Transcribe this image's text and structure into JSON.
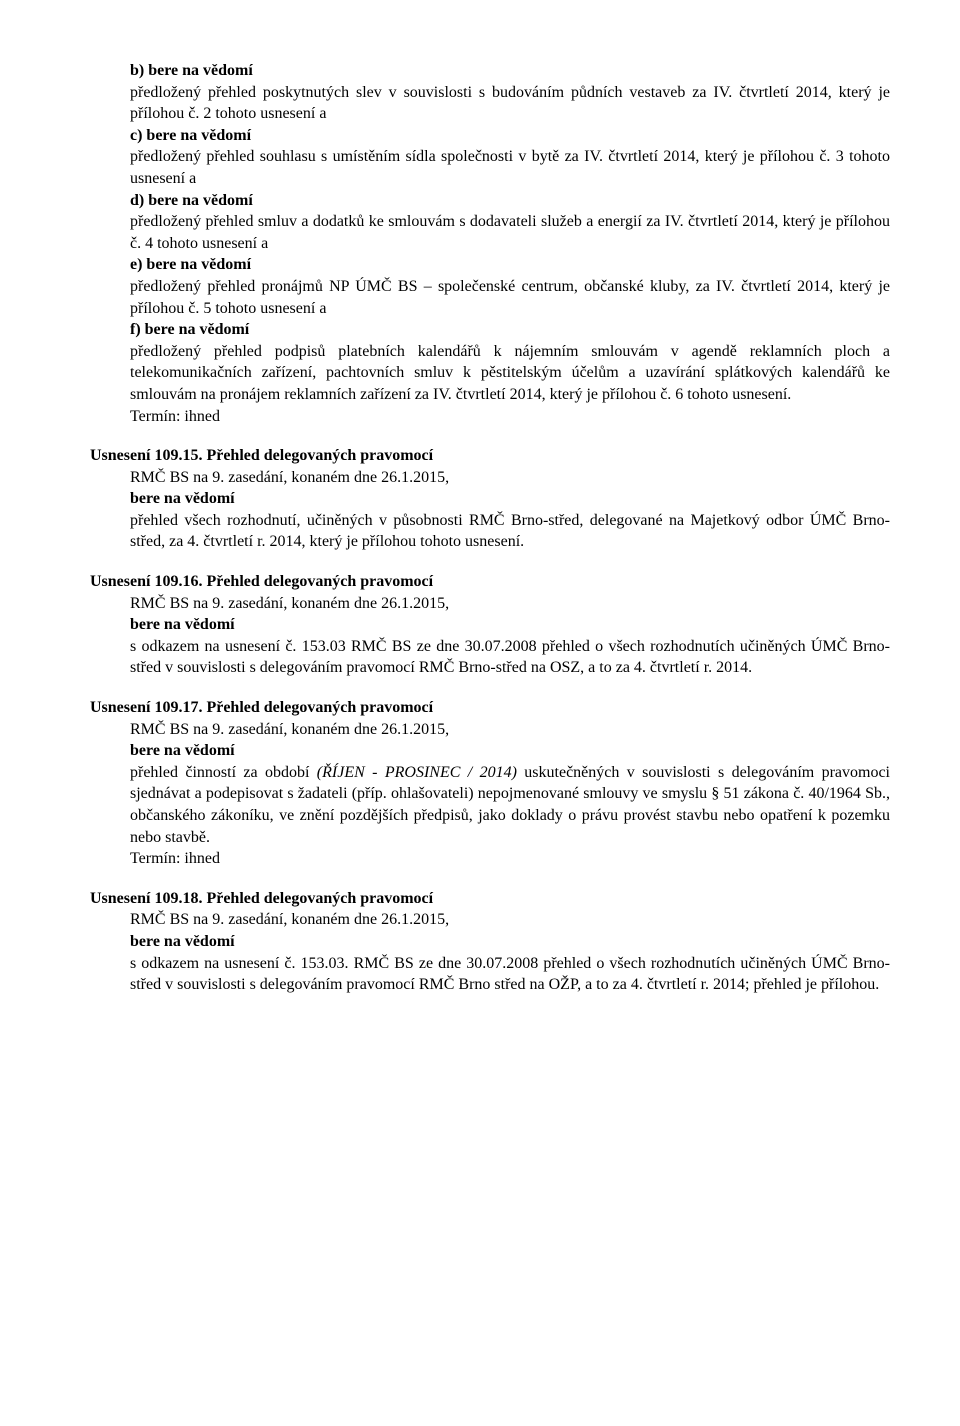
{
  "intro": {
    "b_head": "b) bere na vědomí",
    "b_body": "předložený přehled poskytnutých slev v souvislosti s budováním půdních vestaveb za IV. čtvrtletí 2014, který je přílohou č. 2 tohoto usnesení a",
    "c_head": "c) bere na vědomí",
    "c_body": "předložený přehled souhlasu s umístěním sídla společnosti v bytě za IV. čtvrtletí 2014, který je přílohou č. 3 tohoto usnesení a",
    "d_head": "d) bere na vědomí",
    "d_body": "předložený přehled smluv a dodatků ke smlouvám s dodavateli služeb a energií za IV. čtvrtletí 2014, který je přílohou č. 4 tohoto usnesení a",
    "e_head": "e) bere na vědomí",
    "e_body": "předložený přehled pronájmů NP ÚMČ BS – společenské centrum, občanské kluby, za IV. čtvrtletí 2014, který je přílohou č. 5 tohoto usnesení a",
    "f_head": "f) bere na vědomí",
    "f_body": "předložený přehled podpisů platebních kalendářů k nájemním smlouvám v agendě reklamních ploch a telekomunikačních zařízení, pachtovních smluv k pěstitelským účelům a uzavírání splátkových kalendářů ke smlouvám na pronájem reklamních zařízení za IV. čtvrtletí 2014, který je přílohou č. 6 tohoto usnesení.",
    "termin": "Termín: ihned"
  },
  "u15": {
    "heading_bold": "Usnesení 109.15. Přehled delegovaných pravomocí",
    "line1": "RMČ BS na 9. zasedání, konaném dne 26.1.2015,",
    "sub": "bere na vědomí",
    "body": "přehled všech rozhodnutí, učiněných v působnosti RMČ Brno-střed, delegované na Majetkový odbor ÚMČ Brno-střed, za 4. čtvrtletí r. 2014, který je přílohou tohoto usnesení."
  },
  "u16": {
    "heading_bold": "Usnesení 109.16. Přehled delegovaných pravomocí",
    "line1": "RMČ BS na 9. zasedání, konaném dne 26.1.2015,",
    "sub": "bere na vědomí",
    "body": "s odkazem na usnesení č. 153.03 RMČ BS ze dne 30.07.2008 přehled o všech rozhodnutích učiněných ÚMČ Brno-střed v souvislosti s delegováním pravomocí RMČ Brno-střed na OSZ, a to za 4. čtvrtletí r. 2014."
  },
  "u17": {
    "heading_bold": "Usnesení 109.17. Přehled delegovaných pravomocí",
    "line1": "RMČ BS na  9. zasedání, konaném dne 26.1.2015,",
    "sub": "bere na vědomí",
    "body_pre": "přehled  činností za období ",
    "body_italic": "(ŘÍJEN - PROSINEC  / 2014)",
    "body_post": " uskutečněných v souvislosti s delegováním pravomoci sjednávat a podepisovat s žadateli (příp. ohlašovateli) nepojmenované smlouvy ve smyslu § 51 zákona č. 40/1964 Sb., občanského zákoníku, ve znění pozdějších předpisů, jako doklady o právu provést stavbu nebo opatření k pozemku nebo stavbě.",
    "termin": "Termín: ihned"
  },
  "u18": {
    "heading_bold": "Usnesení 109.18. Přehled delegovaných pravomocí",
    "line1": "RMČ BS na 9. zasedání, konaném dne 26.1.2015,",
    "sub": "bere na vědomí",
    "body": "s odkazem na usnesení č. 153.03. RMČ BS ze dne 30.07.2008 přehled o všech rozhodnutích učiněných ÚMČ Brno-střed v souvislosti s delegováním pravomocí RMČ Brno  střed na OŽP, a to za 4. čtvrtletí r. 2014; přehled je přílohou."
  }
}
